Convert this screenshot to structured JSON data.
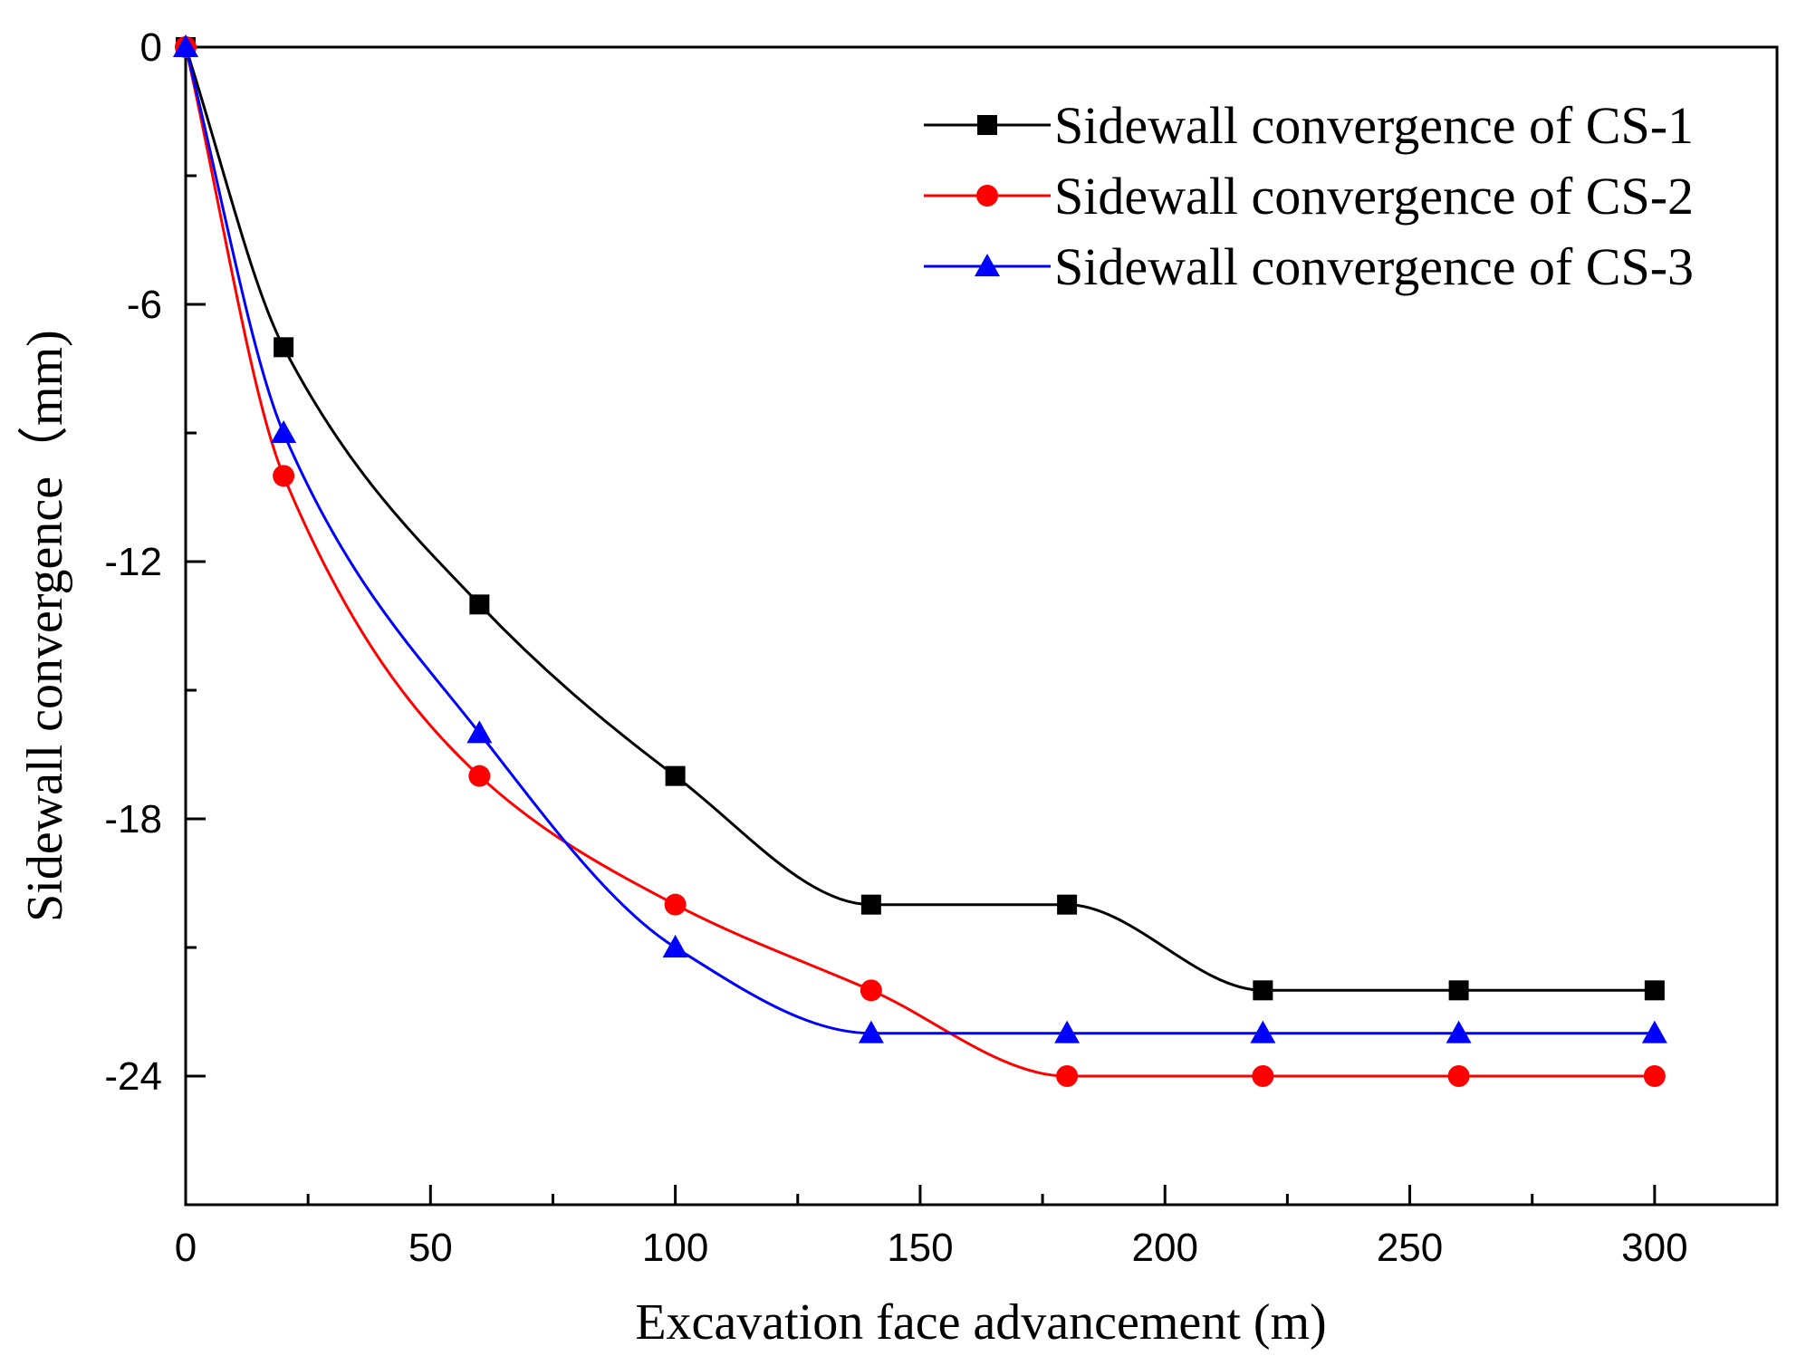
{
  "chart_data": {
    "type": "line",
    "title": "",
    "xlabel": "Excavation face advancement (m)",
    "ylabel": "Sidewall convergence（mm)",
    "xlim": [
      0,
      325
    ],
    "ylim": [
      -27,
      0
    ],
    "xticks": [
      0,
      50,
      100,
      150,
      200,
      250,
      300
    ],
    "yticks": [
      0,
      -6,
      -12,
      -18,
      -24
    ],
    "x": [
      0,
      20,
      60,
      100,
      140,
      180,
      220,
      260,
      300
    ],
    "legend_position": "top-right",
    "grid": false,
    "series": [
      {
        "name": "Sidewall convergence of CS-1",
        "color": "#000000",
        "marker": "square",
        "values": [
          0,
          -7.0,
          -13.0,
          -17.0,
          -20.0,
          -20.0,
          -22.0,
          -22.0,
          -22.0
        ]
      },
      {
        "name": "Sidewall convergence of CS-2",
        "color": "#ff0000",
        "marker": "circle",
        "values": [
          0,
          -10.0,
          -17.0,
          -20.0,
          -22.0,
          -24.0,
          -24.0,
          -24.0,
          -24.0
        ]
      },
      {
        "name": "Sidewall convergence of CS-3",
        "color": "#0000ff",
        "marker": "triangle",
        "values": [
          0,
          -9.0,
          -16.0,
          -21.0,
          -23.0,
          -23.0,
          -23.0,
          -23.0,
          -23.0
        ]
      }
    ]
  }
}
